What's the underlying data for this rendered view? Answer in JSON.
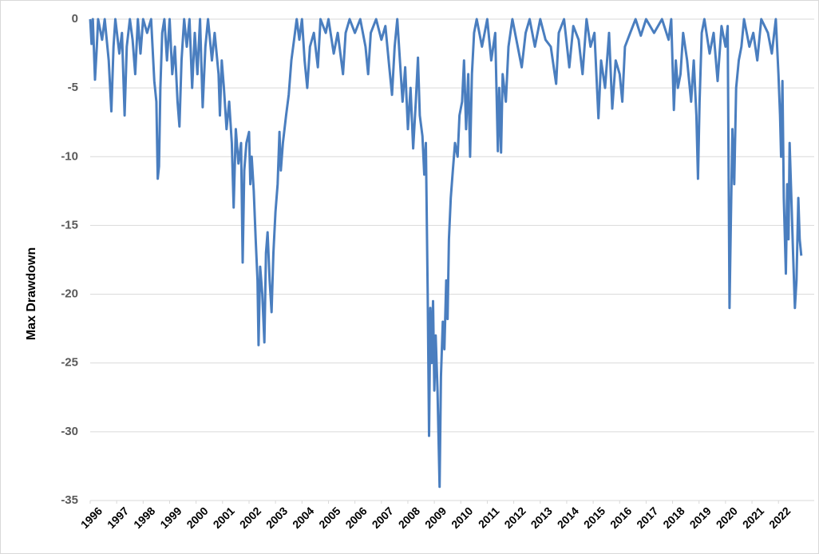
{
  "chart_data": {
    "type": "line",
    "ylabel": "Max Drawdown",
    "color": "#4a7ebf",
    "grid": true,
    "xlim": [
      1996,
      2023.35
    ],
    "ylim": [
      -35,
      0
    ],
    "yticks": [
      0,
      -5,
      -10,
      -15,
      -20,
      -25,
      -30,
      -35
    ],
    "xticks": [
      1996,
      1997,
      1998,
      1999,
      2000,
      2001,
      2002,
      2003,
      2004,
      2005,
      2006,
      2007,
      2008,
      2009,
      2010,
      2011,
      2012,
      2013,
      2014,
      2015,
      2016,
      2017,
      2018,
      2019,
      2020,
      2021,
      2022
    ],
    "x": [
      1996.0,
      1996.05,
      1996.1,
      1996.18,
      1996.25,
      1996.3,
      1996.45,
      1996.55,
      1996.7,
      1996.8,
      1996.88,
      1996.95,
      1997.1,
      1997.2,
      1997.3,
      1997.38,
      1997.5,
      1997.6,
      1997.7,
      1997.8,
      1997.9,
      1998.0,
      1998.15,
      1998.3,
      1998.42,
      1998.5,
      1998.55,
      1998.6,
      1998.65,
      1998.72,
      1998.8,
      1998.9,
      1999.0,
      1999.1,
      1999.2,
      1999.3,
      1999.37,
      1999.45,
      1999.55,
      1999.65,
      1999.75,
      1999.85,
      1999.95,
      2000.05,
      2000.15,
      2000.25,
      2000.35,
      2000.45,
      2000.6,
      2000.7,
      2000.85,
      2000.9,
      2000.97,
      2001.05,
      2001.15,
      2001.25,
      2001.35,
      2001.42,
      2001.5,
      2001.6,
      2001.7,
      2001.76,
      2001.82,
      2001.9,
      2002.0,
      2002.05,
      2002.1,
      2002.18,
      2002.25,
      2002.32,
      2002.36,
      2002.42,
      2002.5,
      2002.58,
      2002.64,
      2002.7,
      2002.78,
      2002.85,
      2002.92,
      2003.0,
      2003.08,
      2003.15,
      2003.2,
      2003.28,
      2003.4,
      2003.5,
      2003.6,
      2003.7,
      2003.8,
      2003.9,
      2004.0,
      2004.1,
      2004.2,
      2004.3,
      2004.45,
      2004.6,
      2004.7,
      2004.9,
      2005.0,
      2005.2,
      2005.35,
      2005.55,
      2005.65,
      2005.8,
      2006.0,
      2006.2,
      2006.4,
      2006.5,
      2006.6,
      2006.8,
      2007.0,
      2007.15,
      2007.3,
      2007.4,
      2007.5,
      2007.6,
      2007.7,
      2007.8,
      2007.9,
      2008.0,
      2008.1,
      2008.2,
      2008.3,
      2008.38,
      2008.45,
      2008.55,
      2008.62,
      2008.68,
      2008.75,
      2008.8,
      2008.85,
      2008.9,
      2008.95,
      2009.0,
      2009.05,
      2009.12,
      2009.2,
      2009.25,
      2009.32,
      2009.38,
      2009.45,
      2009.5,
      2009.55,
      2009.62,
      2009.7,
      2009.78,
      2009.88,
      2009.95,
      2010.05,
      2010.12,
      2010.2,
      2010.28,
      2010.35,
      2010.42,
      2010.5,
      2010.6,
      2010.8,
      2011.0,
      2011.15,
      2011.3,
      2011.4,
      2011.45,
      2011.52,
      2011.58,
      2011.7,
      2011.8,
      2011.95,
      2012.1,
      2012.3,
      2012.45,
      2012.6,
      2012.8,
      2013.0,
      2013.2,
      2013.4,
      2013.6,
      2013.7,
      2013.9,
      2014.1,
      2014.25,
      2014.45,
      2014.6,
      2014.75,
      2014.9,
      2015.05,
      2015.2,
      2015.3,
      2015.45,
      2015.6,
      2015.72,
      2015.85,
      2016.0,
      2016.1,
      2016.2,
      2016.4,
      2016.6,
      2016.8,
      2017.0,
      2017.3,
      2017.6,
      2017.85,
      2017.95,
      2018.05,
      2018.12,
      2018.2,
      2018.3,
      2018.4,
      2018.55,
      2018.7,
      2018.8,
      2018.9,
      2018.96,
      2019.02,
      2019.1,
      2019.2,
      2019.4,
      2019.55,
      2019.7,
      2019.85,
      2020.0,
      2020.08,
      2020.15,
      2020.2,
      2020.26,
      2020.33,
      2020.4,
      2020.5,
      2020.6,
      2020.7,
      2020.9,
      2021.05,
      2021.2,
      2021.35,
      2021.6,
      2021.75,
      2021.9,
      2022.0,
      2022.06,
      2022.1,
      2022.15,
      2022.2,
      2022.28,
      2022.33,
      2022.38,
      2022.42,
      2022.48,
      2022.55,
      2022.62,
      2022.68,
      2022.75,
      2022.8,
      2022.86
    ],
    "values": [
      0,
      -1.8,
      0,
      -4.4,
      -2,
      0,
      -1.5,
      0,
      -3,
      -6.7,
      -2,
      0,
      -2.5,
      -1,
      -7,
      -2,
      0,
      -1.5,
      -4,
      0,
      -2.5,
      0,
      -1,
      0,
      -4.5,
      -6,
      -11.6,
      -10.7,
      -5,
      -1,
      0,
      -3,
      0,
      -4,
      -2,
      -6,
      -7.8,
      -3,
      0,
      -2,
      0,
      -5,
      -1,
      -4,
      0,
      -6.4,
      -2,
      0,
      -3,
      -1,
      -4,
      -7,
      -3,
      -5,
      -8,
      -6,
      -9,
      -13.7,
      -8,
      -10.5,
      -9,
      -17.7,
      -11,
      -9,
      -8.2,
      -12,
      -10,
      -12.5,
      -16,
      -19,
      -23.7,
      -18,
      -20,
      -23.5,
      -17,
      -15.5,
      -19,
      -21.3,
      -17,
      -14,
      -12,
      -8.2,
      -11,
      -9,
      -7,
      -5.5,
      -3,
      -1.5,
      0,
      -1.5,
      0,
      -3,
      -5,
      -2,
      -1,
      -3.5,
      0,
      -1,
      0,
      -2.5,
      -1,
      -4,
      -1,
      0,
      -1,
      0,
      -2,
      -4,
      -1,
      0,
      -1.5,
      -0.5,
      -3.5,
      -5.5,
      -2,
      0,
      -3,
      -6,
      -3.5,
      -8,
      -5,
      -9.4,
      -6,
      -2.8,
      -7,
      -8.5,
      -11.3,
      -9,
      -20,
      -30.3,
      -21,
      -25,
      -20.5,
      -27,
      -23,
      -27,
      -34,
      -26,
      -22,
      -24,
      -19,
      -21.8,
      -16,
      -13,
      -11,
      -9,
      -10,
      -7,
      -6,
      -3,
      -8,
      -4,
      -10,
      -4,
      -1,
      0,
      -2,
      0,
      -3,
      -1,
      -9.6,
      -5,
      -9.7,
      -4,
      -6,
      -2,
      0,
      -1.5,
      -3.5,
      -1,
      0,
      -2,
      0,
      -1.5,
      -2,
      -4.7,
      -1,
      0,
      -3.5,
      -0.5,
      -1.5,
      -4,
      0,
      -2,
      -1,
      -7.2,
      -3,
      -5,
      -1,
      -6.5,
      -3,
      -4,
      -6,
      -2,
      -1,
      0,
      -1.2,
      0,
      -1,
      0,
      -1.5,
      0,
      -6.6,
      -3,
      -5,
      -4,
      -1,
      -3,
      -6,
      -3,
      -7,
      -11.6,
      -6,
      -1,
      0,
      -2.5,
      -1,
      -4.5,
      -0.5,
      -2,
      -0.5,
      -21,
      -15,
      -8,
      -12,
      -5,
      -3,
      -2,
      0,
      -2,
      -1,
      -3,
      0,
      -1,
      -2.5,
      0,
      -4,
      -7,
      -10,
      -4.5,
      -13,
      -18.5,
      -12,
      -16,
      -9,
      -12.5,
      -17,
      -21,
      -19,
      -13,
      -16,
      -17.2
    ]
  }
}
